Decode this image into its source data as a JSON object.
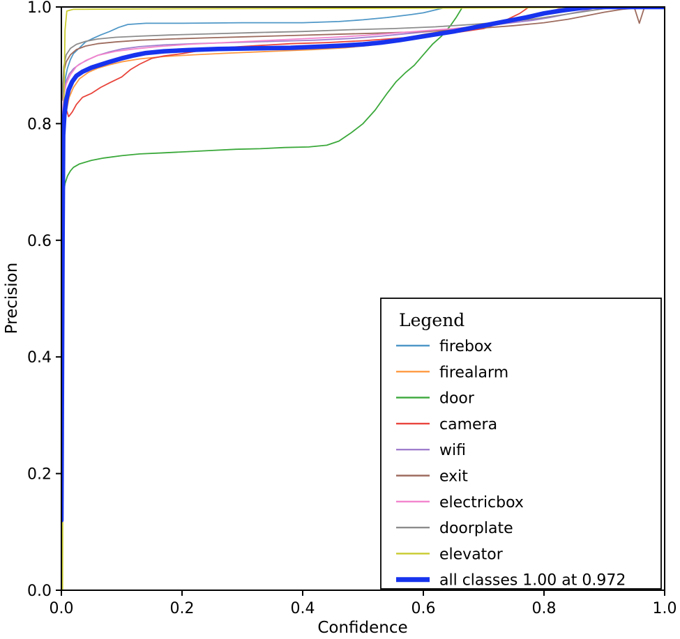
{
  "figure": {
    "background": "#ffffff",
    "axis_color": "#000000"
  },
  "chart_data": {
    "type": "line",
    "title": "",
    "xlabel": "Confidence",
    "ylabel": "Precision",
    "xlim": [
      0.0,
      1.0
    ],
    "ylim": [
      0.0,
      1.0
    ],
    "xticks": [
      "0.0",
      "0.2",
      "0.4",
      "0.6",
      "0.8",
      "1.0"
    ],
    "yticks": [
      "0.0",
      "0.2",
      "0.4",
      "0.6",
      "0.8",
      "1.0"
    ],
    "grid": false,
    "legend": {
      "title": "Legend",
      "position": "lower right"
    },
    "series": [
      {
        "name": "firebox",
        "color": "#4f97c7",
        "width": 1.8,
        "points": [
          [
            0.001,
            0.75
          ],
          [
            0.004,
            0.86
          ],
          [
            0.007,
            0.88
          ],
          [
            0.01,
            0.895
          ],
          [
            0.015,
            0.91
          ],
          [
            0.02,
            0.92
          ],
          [
            0.03,
            0.93
          ],
          [
            0.04,
            0.94
          ],
          [
            0.05,
            0.945
          ],
          [
            0.065,
            0.952
          ],
          [
            0.08,
            0.958
          ],
          [
            0.095,
            0.965
          ],
          [
            0.11,
            0.97
          ],
          [
            0.14,
            0.972
          ],
          [
            0.2,
            0.972
          ],
          [
            0.3,
            0.973
          ],
          [
            0.4,
            0.973
          ],
          [
            0.46,
            0.975
          ],
          [
            0.5,
            0.978
          ],
          [
            0.54,
            0.982
          ],
          [
            0.58,
            0.987
          ],
          [
            0.6,
            0.99
          ],
          [
            0.62,
            0.995
          ],
          [
            0.64,
            1.0
          ],
          [
            1.0,
            1.0
          ]
        ]
      },
      {
        "name": "firealarm",
        "color": "#ff9840",
        "width": 1.8,
        "points": [
          [
            0.001,
            0.76
          ],
          [
            0.004,
            0.79
          ],
          [
            0.008,
            0.82
          ],
          [
            0.013,
            0.845
          ],
          [
            0.02,
            0.862
          ],
          [
            0.03,
            0.877
          ],
          [
            0.045,
            0.888
          ],
          [
            0.06,
            0.895
          ],
          [
            0.08,
            0.901
          ],
          [
            0.1,
            0.906
          ],
          [
            0.13,
            0.911
          ],
          [
            0.17,
            0.915
          ],
          [
            0.22,
            0.918
          ],
          [
            0.28,
            0.921
          ],
          [
            0.35,
            0.924
          ],
          [
            0.42,
            0.927
          ],
          [
            0.47,
            0.93
          ],
          [
            0.51,
            0.934
          ],
          [
            0.54,
            0.939
          ],
          [
            0.57,
            0.946
          ],
          [
            0.6,
            0.953
          ],
          [
            0.63,
            0.958
          ],
          [
            0.66,
            0.962
          ],
          [
            0.7,
            0.966
          ],
          [
            0.73,
            0.971
          ],
          [
            0.76,
            0.977
          ],
          [
            0.79,
            0.984
          ],
          [
            0.81,
            0.99
          ],
          [
            0.83,
            0.995
          ],
          [
            0.85,
            1.0
          ],
          [
            1.0,
            1.0
          ]
        ]
      },
      {
        "name": "door",
        "color": "#3aa83a",
        "width": 1.8,
        "points": [
          [
            0.001,
            0.64
          ],
          [
            0.003,
            0.675
          ],
          [
            0.006,
            0.697
          ],
          [
            0.01,
            0.71
          ],
          [
            0.015,
            0.719
          ],
          [
            0.02,
            0.725
          ],
          [
            0.03,
            0.731
          ],
          [
            0.05,
            0.737
          ],
          [
            0.07,
            0.741
          ],
          [
            0.1,
            0.745
          ],
          [
            0.13,
            0.748
          ],
          [
            0.17,
            0.75
          ],
          [
            0.21,
            0.752
          ],
          [
            0.25,
            0.754
          ],
          [
            0.29,
            0.756
          ],
          [
            0.33,
            0.757
          ],
          [
            0.37,
            0.759
          ],
          [
            0.41,
            0.76
          ],
          [
            0.44,
            0.763
          ],
          [
            0.46,
            0.77
          ],
          [
            0.48,
            0.784
          ],
          [
            0.5,
            0.8
          ],
          [
            0.52,
            0.823
          ],
          [
            0.54,
            0.852
          ],
          [
            0.555,
            0.872
          ],
          [
            0.57,
            0.887
          ],
          [
            0.585,
            0.9
          ],
          [
            0.6,
            0.918
          ],
          [
            0.615,
            0.936
          ],
          [
            0.63,
            0.95
          ],
          [
            0.645,
            0.968
          ],
          [
            0.655,
            0.983
          ],
          [
            0.665,
            1.0
          ],
          [
            1.0,
            1.0
          ]
        ]
      },
      {
        "name": "camera",
        "color": "#e8433a",
        "width": 1.8,
        "points": [
          [
            0.001,
            0.775
          ],
          [
            0.005,
            0.78
          ],
          [
            0.008,
            0.825
          ],
          [
            0.012,
            0.812
          ],
          [
            0.018,
            0.82
          ],
          [
            0.025,
            0.833
          ],
          [
            0.035,
            0.845
          ],
          [
            0.05,
            0.852
          ],
          [
            0.065,
            0.862
          ],
          [
            0.08,
            0.87
          ],
          [
            0.1,
            0.88
          ],
          [
            0.115,
            0.893
          ],
          [
            0.13,
            0.902
          ],
          [
            0.15,
            0.912
          ],
          [
            0.17,
            0.916
          ],
          [
            0.2,
            0.92
          ],
          [
            0.24,
            0.927
          ],
          [
            0.28,
            0.931
          ],
          [
            0.33,
            0.934
          ],
          [
            0.38,
            0.937
          ],
          [
            0.44,
            0.939
          ],
          [
            0.5,
            0.942
          ],
          [
            0.54,
            0.945
          ],
          [
            0.58,
            0.948
          ],
          [
            0.62,
            0.952
          ],
          [
            0.66,
            0.957
          ],
          [
            0.7,
            0.963
          ],
          [
            0.72,
            0.97
          ],
          [
            0.74,
            0.979
          ],
          [
            0.76,
            0.989
          ],
          [
            0.775,
            1.0
          ],
          [
            1.0,
            1.0
          ]
        ]
      },
      {
        "name": "wifi",
        "color": "#a07ece",
        "width": 1.8,
        "points": [
          [
            0.001,
            0.8
          ],
          [
            0.004,
            0.853
          ],
          [
            0.008,
            0.873
          ],
          [
            0.013,
            0.885
          ],
          [
            0.02,
            0.894
          ],
          [
            0.03,
            0.902
          ],
          [
            0.045,
            0.91
          ],
          [
            0.06,
            0.917
          ],
          [
            0.08,
            0.923
          ],
          [
            0.1,
            0.928
          ],
          [
            0.13,
            0.932
          ],
          [
            0.17,
            0.935
          ],
          [
            0.22,
            0.937
          ],
          [
            0.28,
            0.939
          ],
          [
            0.35,
            0.941
          ],
          [
            0.42,
            0.943
          ],
          [
            0.48,
            0.946
          ],
          [
            0.53,
            0.95
          ],
          [
            0.58,
            0.955
          ],
          [
            0.62,
            0.959
          ],
          [
            0.66,
            0.963
          ],
          [
            0.7,
            0.967
          ],
          [
            0.74,
            0.972
          ],
          [
            0.78,
            0.977
          ],
          [
            0.81,
            0.982
          ],
          [
            0.84,
            0.988
          ],
          [
            0.87,
            0.994
          ],
          [
            0.89,
            1.0
          ],
          [
            1.0,
            1.0
          ]
        ]
      },
      {
        "name": "exit",
        "color": "#9d6b5e",
        "width": 1.8,
        "points": [
          [
            0.001,
            0.84
          ],
          [
            0.004,
            0.888
          ],
          [
            0.008,
            0.906
          ],
          [
            0.015,
            0.918
          ],
          [
            0.025,
            0.927
          ],
          [
            0.04,
            0.933
          ],
          [
            0.06,
            0.937
          ],
          [
            0.09,
            0.94
          ],
          [
            0.13,
            0.943
          ],
          [
            0.18,
            0.945
          ],
          [
            0.24,
            0.947
          ],
          [
            0.31,
            0.949
          ],
          [
            0.38,
            0.951
          ],
          [
            0.45,
            0.953
          ],
          [
            0.52,
            0.955
          ],
          [
            0.58,
            0.957
          ],
          [
            0.64,
            0.96
          ],
          [
            0.7,
            0.964
          ],
          [
            0.75,
            0.968
          ],
          [
            0.8,
            0.973
          ],
          [
            0.84,
            0.979
          ],
          [
            0.87,
            0.985
          ],
          [
            0.9,
            0.991
          ],
          [
            0.93,
            0.996
          ],
          [
            0.95,
            0.998
          ],
          [
            0.958,
            0.972
          ],
          [
            0.966,
            0.998
          ],
          [
            0.975,
            1.0
          ],
          [
            1.0,
            1.0
          ]
        ]
      },
      {
        "name": "electricbox",
        "color": "#f284cd",
        "width": 1.8,
        "points": [
          [
            0.001,
            0.79
          ],
          [
            0.004,
            0.848
          ],
          [
            0.008,
            0.868
          ],
          [
            0.015,
            0.884
          ],
          [
            0.025,
            0.898
          ],
          [
            0.04,
            0.908
          ],
          [
            0.06,
            0.917
          ],
          [
            0.09,
            0.924
          ],
          [
            0.12,
            0.928
          ],
          [
            0.16,
            0.932
          ],
          [
            0.21,
            0.936
          ],
          [
            0.27,
            0.939
          ],
          [
            0.33,
            0.942
          ],
          [
            0.39,
            0.945
          ],
          [
            0.45,
            0.948
          ],
          [
            0.5,
            0.951
          ],
          [
            0.55,
            0.955
          ],
          [
            0.6,
            0.959
          ],
          [
            0.65,
            0.963
          ],
          [
            0.7,
            0.968
          ],
          [
            0.74,
            0.973
          ],
          [
            0.78,
            0.981
          ],
          [
            0.81,
            0.99
          ],
          [
            0.83,
            1.0
          ],
          [
            1.0,
            1.0
          ]
        ]
      },
      {
        "name": "doorplate",
        "color": "#8c8c8c",
        "width": 1.8,
        "points": [
          [
            0.001,
            0.85
          ],
          [
            0.004,
            0.898
          ],
          [
            0.008,
            0.918
          ],
          [
            0.015,
            0.929
          ],
          [
            0.025,
            0.936
          ],
          [
            0.04,
            0.941
          ],
          [
            0.06,
            0.945
          ],
          [
            0.09,
            0.948
          ],
          [
            0.13,
            0.95
          ],
          [
            0.18,
            0.952
          ],
          [
            0.25,
            0.954
          ],
          [
            0.32,
            0.956
          ],
          [
            0.4,
            0.958
          ],
          [
            0.48,
            0.961
          ],
          [
            0.55,
            0.963
          ],
          [
            0.62,
            0.966
          ],
          [
            0.68,
            0.97
          ],
          [
            0.73,
            0.974
          ],
          [
            0.78,
            0.979
          ],
          [
            0.82,
            0.985
          ],
          [
            0.86,
            0.991
          ],
          [
            0.9,
            0.997
          ],
          [
            0.92,
            1.0
          ],
          [
            1.0,
            1.0
          ]
        ]
      },
      {
        "name": "elevator",
        "color": "#c9cb2e",
        "width": 1.8,
        "points": [
          [
            0.002,
            0.0
          ],
          [
            0.004,
            0.82
          ],
          [
            0.006,
            0.96
          ],
          [
            0.009,
            0.993
          ],
          [
            0.02,
            0.996
          ],
          [
            0.2,
            0.997
          ],
          [
            0.6,
            0.998
          ],
          [
            1.0,
            1.0
          ]
        ]
      },
      {
        "name": "all classes 1.00 at 0.972",
        "color": "#1733ee",
        "width": 6.5,
        "points": [
          [
            0.0,
            0.12
          ],
          [
            0.002,
            0.6
          ],
          [
            0.003,
            0.78
          ],
          [
            0.005,
            0.815
          ],
          [
            0.008,
            0.84
          ],
          [
            0.012,
            0.858
          ],
          [
            0.018,
            0.872
          ],
          [
            0.025,
            0.882
          ],
          [
            0.035,
            0.889
          ],
          [
            0.05,
            0.896
          ],
          [
            0.065,
            0.901
          ],
          [
            0.08,
            0.906
          ],
          [
            0.1,
            0.912
          ],
          [
            0.12,
            0.917
          ],
          [
            0.14,
            0.921
          ],
          [
            0.17,
            0.924
          ],
          [
            0.21,
            0.926
          ],
          [
            0.26,
            0.928
          ],
          [
            0.32,
            0.929
          ],
          [
            0.38,
            0.93
          ],
          [
            0.43,
            0.932
          ],
          [
            0.47,
            0.934
          ],
          [
            0.5,
            0.936
          ],
          [
            0.53,
            0.939
          ],
          [
            0.56,
            0.943
          ],
          [
            0.59,
            0.948
          ],
          [
            0.62,
            0.953
          ],
          [
            0.65,
            0.958
          ],
          [
            0.68,
            0.964
          ],
          [
            0.71,
            0.97
          ],
          [
            0.74,
            0.976
          ],
          [
            0.77,
            0.982
          ],
          [
            0.8,
            0.989
          ],
          [
            0.83,
            0.994
          ],
          [
            0.86,
            0.998
          ],
          [
            0.88,
            1.0
          ],
          [
            0.972,
            1.0
          ],
          [
            1.0,
            1.0
          ]
        ]
      }
    ]
  }
}
